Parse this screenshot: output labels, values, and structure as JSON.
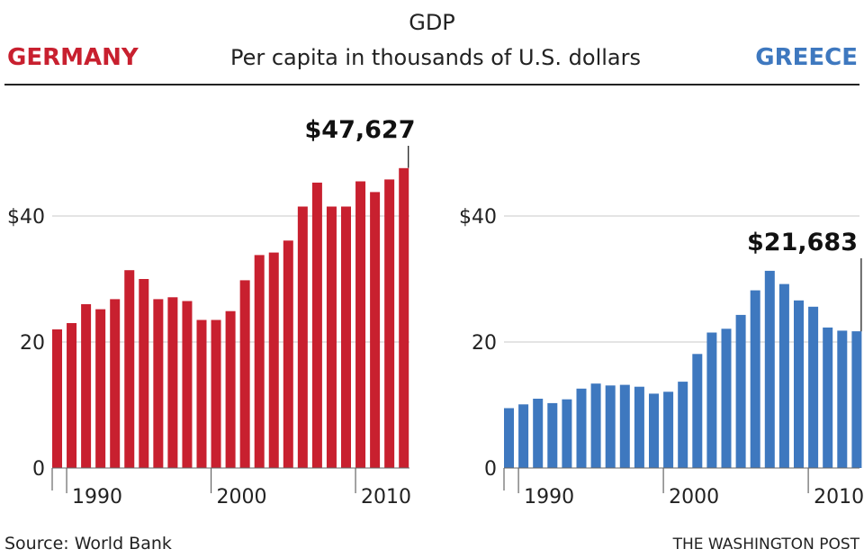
{
  "header": {
    "title": "GDP",
    "subtitle": "Per capita in thousands of U.S. dollars"
  },
  "footer": {
    "source": "Source: World Bank",
    "credit": "THE WASHINGTON POST"
  },
  "chart_data": [
    {
      "type": "bar",
      "title": "GERMANY",
      "color": "#c8202f",
      "x": [
        1989,
        1990,
        1991,
        1992,
        1993,
        1994,
        1995,
        1996,
        1997,
        1998,
        1999,
        2000,
        2001,
        2002,
        2003,
        2004,
        2005,
        2006,
        2007,
        2008,
        2009,
        2010,
        2011,
        2012,
        2013
      ],
      "values": [
        22.0,
        23.0,
        26.0,
        25.2,
        26.8,
        31.4,
        30.0,
        26.8,
        27.1,
        26.5,
        23.5,
        23.5,
        24.9,
        29.8,
        33.8,
        34.2,
        36.1,
        41.5,
        45.3,
        41.5,
        41.5,
        45.5,
        43.8,
        45.8,
        47.6
      ],
      "yticks": [
        0,
        20,
        40
      ],
      "ytick_labels": [
        "0",
        "20",
        "$40"
      ],
      "xticks": [
        1990,
        2000,
        2010
      ],
      "xtick_labels": [
        "1990",
        "2000",
        "2010"
      ],
      "ylim": [
        0,
        50
      ],
      "annotation": {
        "label": "$47,627",
        "x": 2013,
        "value": 47.627
      }
    },
    {
      "type": "bar",
      "title": "GREECE",
      "color": "#3e78bf",
      "x": [
        1989,
        1990,
        1991,
        1992,
        1993,
        1994,
        1995,
        1996,
        1997,
        1998,
        1999,
        2000,
        2001,
        2002,
        2003,
        2004,
        2005,
        2006,
        2007,
        2008,
        2009,
        2010,
        2011,
        2012,
        2013
      ],
      "values": [
        9.5,
        10.1,
        11.0,
        10.3,
        10.9,
        12.6,
        13.4,
        13.1,
        13.2,
        12.9,
        11.8,
        12.1,
        13.7,
        18.1,
        21.5,
        22.1,
        24.3,
        28.2,
        31.3,
        29.2,
        26.6,
        25.6,
        22.3,
        21.8,
        21.7
      ],
      "yticks": [
        0,
        20,
        40
      ],
      "ytick_labels": [
        "0",
        "20",
        "$40"
      ],
      "xticks": [
        1990,
        2000,
        2010
      ],
      "xtick_labels": [
        "1990",
        "2000",
        "2010"
      ],
      "ylim": [
        0,
        50
      ],
      "annotation": {
        "label": "$21,683",
        "x": 2013,
        "value": 21.683
      }
    }
  ]
}
